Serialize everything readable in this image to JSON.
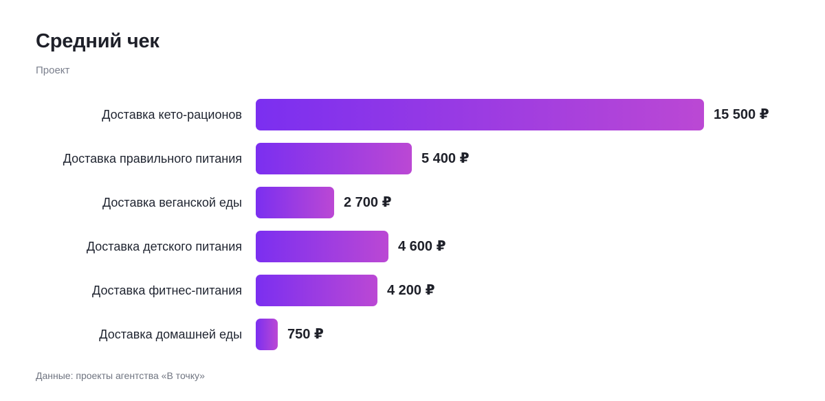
{
  "header": {
    "title": "Средний чек",
    "subtitle": "Проект"
  },
  "footer": {
    "source": "Данные: проекты агентства «В точку»"
  },
  "colors": {
    "bar_gradient_start": "#7b2ff0",
    "bar_gradient_end": "#bb48d4",
    "text": "#1e2029"
  },
  "chart_data": {
    "type": "bar",
    "orientation": "horizontal",
    "title": "Средний чек",
    "subtitle": "Проект",
    "xlabel": "",
    "ylabel": "",
    "grid": false,
    "unit": "₽",
    "xlim": [
      0,
      15500
    ],
    "categories": [
      "Доставка кето-рационов",
      "Доставка правильного питания",
      "Доставка веганской еды",
      "Доставка детского питания",
      "Доставка фитнес-питания",
      "Доставка домашней еды"
    ],
    "values": [
      15500,
      5400,
      2700,
      4600,
      4200,
      750
    ],
    "value_labels": [
      "15 500 ₽",
      "5 400 ₽",
      "2 700 ₽",
      "4 600 ₽",
      "4 200 ₽",
      "750 ₽"
    ]
  }
}
